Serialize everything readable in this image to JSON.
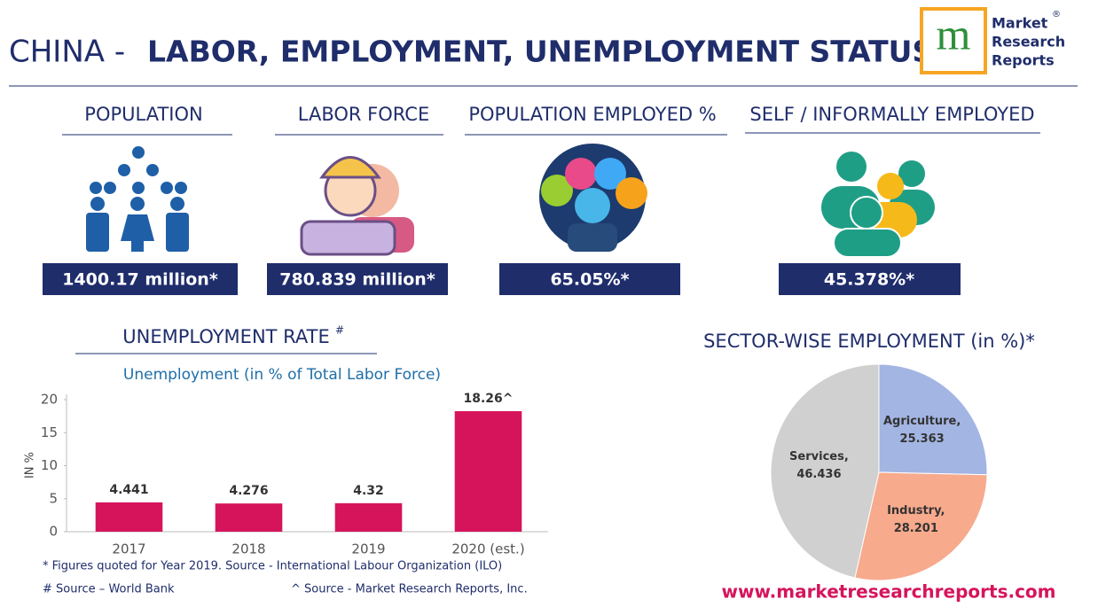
{
  "header": {
    "title_prefix": "CHINA -",
    "title_main": "LABOR, EMPLOYMENT, UNEMPLOYMENT STATUS",
    "logo_letter": "m",
    "logo_lines": [
      "Market",
      "Research",
      "Reports"
    ],
    "logo_registered": "®"
  },
  "stats": [
    {
      "label": "POPULATION",
      "value": "1400.17 million*"
    },
    {
      "label": "LABOR FORCE",
      "value": "780.839 million*"
    },
    {
      "label": "POPULATION EMPLOYED %",
      "value": "65.05%*"
    },
    {
      "label": "SELF / INFORMALLY EMPLOYED",
      "value": "45.378%*"
    }
  ],
  "chart_data": [
    {
      "type": "bar",
      "title": "UNEMPLOYMENT RATE",
      "title_mark": "#",
      "subtitle": "Unemployment (in % of Total Labor Force)",
      "y_label": "IN %",
      "categories": [
        "2017",
        "2018",
        "2019",
        "2020 (est.)"
      ],
      "values": [
        4.441,
        4.276,
        4.32,
        18.26
      ],
      "value_labels": [
        "4.441",
        "4.276",
        "4.32",
        "18.26^"
      ],
      "color": "#d6145c",
      "ylim": [
        0,
        20
      ],
      "yticks": [
        0,
        5,
        10,
        15,
        20
      ],
      "grid": false
    },
    {
      "type": "pie",
      "title": "SECTOR-WISE EMPLOYMENT (in %)*",
      "categories": [
        "Agriculture,",
        "Industry,",
        "Services,"
      ],
      "values": [
        25.363,
        28.201,
        46.436
      ],
      "colors": [
        "#a3b5e3",
        "#f7aa8c",
        "#d0d0d0"
      ]
    }
  ],
  "footnotes": [
    "* Figures quoted for Year 2019. Source - International Labour Organization (ILO)",
    "# Source – World Bank",
    "^ Source -  Market Research Reports, Inc."
  ],
  "website": "www.marketresearchreports.com"
}
